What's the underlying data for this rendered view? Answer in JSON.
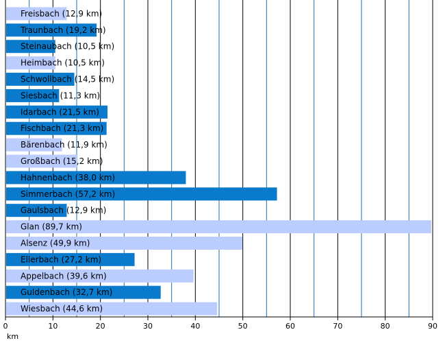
{
  "chart_data": {
    "type": "bar",
    "orientation": "horizontal",
    "categories": [
      "Freisbach (12,9 km)",
      "Traunbach (19,2 km)",
      "Steinaubach (10,5 km)",
      "Heimbach (10,5 km)",
      "Schwollbach (14,5 km)",
      "Siesbach (11,3 km)",
      "Idarbach (21,5 km)",
      "Fischbach (21,3 km)",
      "Bärenbach (11,9 km)",
      "Großbach (15,2 km)",
      "Hahnenbach (38,0 km)",
      "Simmerbach (57,2 km)",
      "Gaulsbach (12,9 km)",
      "Glan (89,7 km)",
      "Alsenz (49,9 km)",
      "Ellerbach (27,2 km)",
      "Appelbach (39,6 km)",
      "Guldenbach (32,7 km)",
      "Wiesbach (44,6 km)"
    ],
    "values": [
      12.9,
      19.2,
      10.5,
      10.5,
      14.5,
      11.3,
      21.5,
      21.3,
      11.9,
      15.2,
      38.0,
      57.2,
      12.9,
      89.7,
      49.9,
      27.2,
      39.6,
      32.7,
      44.6
    ],
    "bar_colors": [
      "#bbccff",
      "#0a7acc",
      "#0a7acc",
      "#bbccff",
      "#0a7acc",
      "#0a7acc",
      "#0a7acc",
      "#0a7acc",
      "#bbccff",
      "#bbccff",
      "#0a7acc",
      "#0a7acc",
      "#0a7acc",
      "#bbccff",
      "#bbccff",
      "#0a7acc",
      "#bbccff",
      "#0a7acc",
      "#bbccff"
    ],
    "xlim": [
      0,
      90
    ],
    "xticks": [
      0,
      10,
      20,
      30,
      40,
      50,
      60,
      70,
      80,
      90
    ],
    "xlabel": "km",
    "grid": "vertical lines every 5 km, major black every 10, minor blue at 5s"
  },
  "colors": {
    "bar_light": "#bbccff",
    "bar_dark": "#0a7acc",
    "grid_major": "#000000",
    "grid_minor": "#1f6fb0"
  }
}
